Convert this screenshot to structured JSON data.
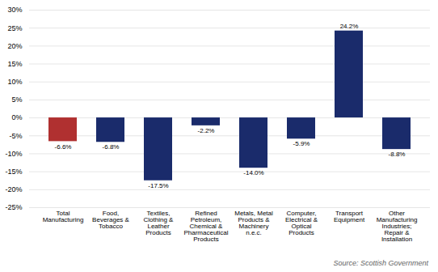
{
  "chart_data": {
    "type": "bar",
    "categories": [
      "Total\nManufacturing",
      "Food,\nBeverages &\nTobacco",
      "Textiles,\nClothing &\nLeather\nProducts",
      "Refined\nPetroleum,\nChemical &\nPharmaceutical\nProducts",
      "Metals, Metal\nProducts &\nMachinery\nn.e.c.",
      "Computer,\nElectrical &\nOptical\nProducts",
      "Transport\nEquipment",
      "Other\nManufacturing\nIndustries;\nRepair &\nInstallation"
    ],
    "values": [
      -6.6,
      -6.8,
      -17.5,
      -2.2,
      -14.0,
      -5.9,
      24.2,
      -8.8
    ],
    "value_labels": [
      "-6.6%",
      "-6.8%",
      "-17.5%",
      "-2.2%",
      "-14.0%",
      "-5.9%",
      "24.2%",
      "-8.8%"
    ],
    "data_labels": true,
    "colors": [
      "#b03030",
      "#1a2b6b",
      "#1a2b6b",
      "#1a2b6b",
      "#1a2b6b",
      "#1a2b6b",
      "#1a2b6b",
      "#1a2b6b"
    ],
    "ylim": [
      -25,
      30
    ],
    "yticks": [
      {
        "value": -25,
        "label": "-25%"
      },
      {
        "value": -20,
        "label": "-20%"
      },
      {
        "value": -15,
        "label": "-15%"
      },
      {
        "value": -10,
        "label": "-10%"
      },
      {
        "value": -5,
        "label": "-5%"
      },
      {
        "value": 0,
        "label": "0%"
      },
      {
        "value": 5,
        "label": "5%"
      },
      {
        "value": 10,
        "label": "10%"
      },
      {
        "value": 15,
        "label": "15%"
      },
      {
        "value": 20,
        "label": "20%"
      },
      {
        "value": 25,
        "label": "25%"
      },
      {
        "value": 30,
        "label": "30%"
      }
    ],
    "grid": true,
    "annotations": [
      "Source: Scottish Government"
    ]
  }
}
